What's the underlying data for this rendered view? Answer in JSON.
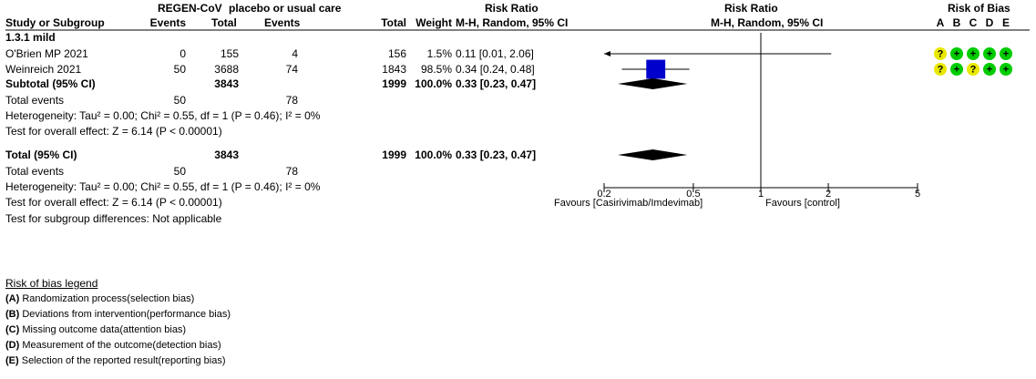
{
  "headers": {
    "group_regen": "REGEN-CoV",
    "group_placebo": "placebo or usual care",
    "group_rr": "Risk Ratio",
    "group_rr_plot": "Risk Ratio",
    "group_rob": "Risk of Bias",
    "study": "Study or Subgroup",
    "events1": "Events",
    "total1": "Total",
    "events2": "Events",
    "total2": "Total",
    "weight": "Weight",
    "rr_method": "M-H, Random, 95% CI",
    "rr_plot_method": "M-H, Random, 95% CI",
    "rob_letters": [
      "A",
      "B",
      "C",
      "D",
      "E"
    ]
  },
  "subgroup": {
    "label": "1.3.1 mild",
    "subtotal": {
      "label": "Subtotal (95% CI)",
      "total1": "3843",
      "total2": "1999",
      "weight": "100.0%",
      "rr": "0.33 [0.23, 0.47]"
    },
    "total_events": {
      "label": "Total events",
      "e1": "50",
      "e2": "78"
    },
    "heterogeneity": "Heterogeneity: Tau² = 0.00; Chi² = 0.55, df = 1 (P = 0.46); I² = 0%",
    "overall": "Test for overall effect: Z = 6.14 (P < 0.00001)"
  },
  "total": {
    "label": "Total (95% CI)",
    "total1": "3843",
    "total2": "1999",
    "weight": "100.0%",
    "rr": "0.33 [0.23, 0.47]",
    "events_label": "Total events",
    "e1": "50",
    "e2": "78",
    "heterogeneity": "Heterogeneity: Tau² = 0.00; Chi² = 0.55, df = 1 (P = 0.46); I² = 0%",
    "overall": "Test for overall effect: Z = 6.14 (P < 0.00001)",
    "subgroup_diff": "Test for subgroup differences: Not applicable"
  },
  "axis": {
    "favours_left": "Favours [Casirivimab/Imdevimab]",
    "favours_right": "Favours [control]"
  },
  "legend": {
    "title": "Risk of bias legend",
    "items": [
      {
        "letter": "(A)",
        "text": " Randomization process(selection bias)"
      },
      {
        "letter": "(B)",
        "text": " Deviations from intervention(performance bias)"
      },
      {
        "letter": "(C)",
        "text": " Missing outcome data(attention bias)"
      },
      {
        "letter": "(D)",
        "text": " Measurement of the outcome(detection bias)"
      },
      {
        "letter": "(E)",
        "text": " Selection of the reported result(reporting bias)"
      }
    ]
  },
  "colors": {
    "square": "#0000cc",
    "diamond": "#000000",
    "low_risk": "#00cc00",
    "unclear": "#e8e800"
  },
  "chart_data": {
    "type": "forest",
    "x_scale": "log",
    "xlim": [
      0.2,
      5
    ],
    "ticks": [
      "0.2",
      "0.5",
      "1",
      "2",
      "5"
    ],
    "tick_values": [
      0.2,
      0.5,
      1,
      2,
      5
    ],
    "studies": [
      {
        "name": "O'Brien MP 2021",
        "e1": "0",
        "t1": "155",
        "e2": "4",
        "t2": "156",
        "weight": "1.5%",
        "rr_text": "0.11 [0.01, 2.06]",
        "rr": 0.11,
        "lo": 0.01,
        "hi": 2.06,
        "weight_pct": 1.5,
        "rob": [
          "?",
          "+",
          "+",
          "+",
          "+"
        ]
      },
      {
        "name": "Weinreich 2021",
        "e1": "50",
        "t1": "3688",
        "e2": "74",
        "t2": "1843",
        "weight": "98.5%",
        "rr_text": "0.34 [0.24, 0.48]",
        "rr": 0.34,
        "lo": 0.24,
        "hi": 0.48,
        "weight_pct": 98.5,
        "rob": [
          "?",
          "+",
          "?",
          "+",
          "+"
        ]
      }
    ],
    "subtotal": {
      "rr": 0.33,
      "lo": 0.23,
      "hi": 0.47
    },
    "total": {
      "rr": 0.33,
      "lo": 0.23,
      "hi": 0.47
    }
  }
}
